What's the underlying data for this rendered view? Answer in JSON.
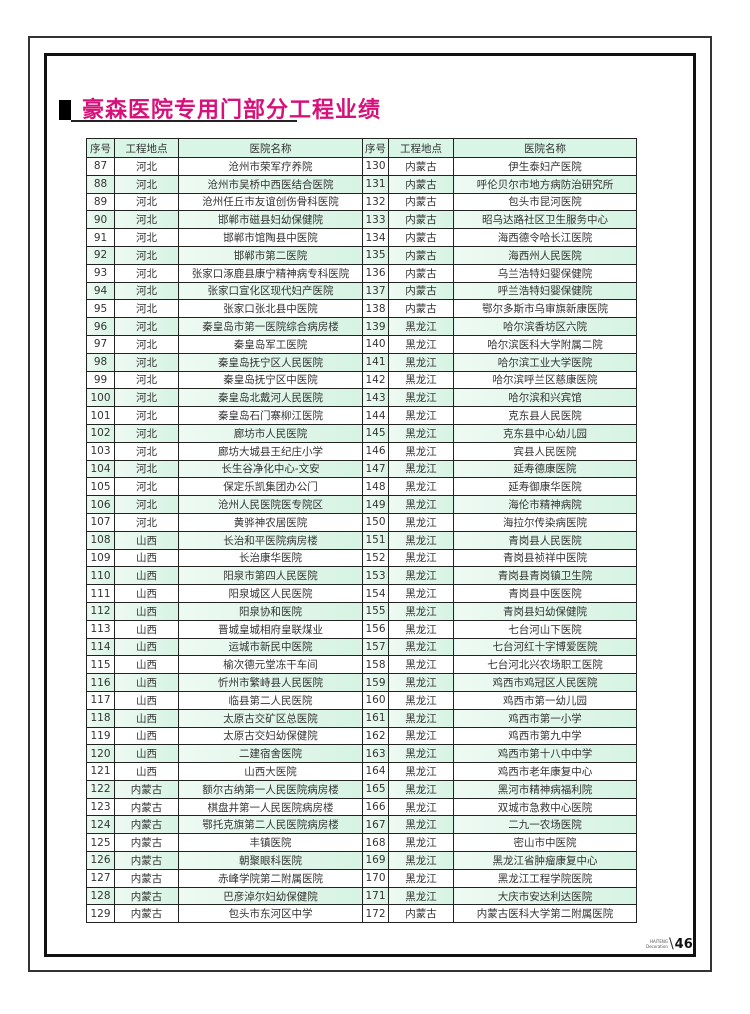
{
  "title": "豪森医院专用门部分工程业绩",
  "columns": [
    "序号",
    "工程地点",
    "医院名称",
    "序号",
    "工程地点",
    "医院名称"
  ],
  "left_rows": [
    [
      "87",
      "河北",
      "沧州市荣军疗养院"
    ],
    [
      "88",
      "河北",
      "沧州市吴桥中西医结合医院"
    ],
    [
      "89",
      "河北",
      "沧州任丘市友谊创伤骨科医院"
    ],
    [
      "90",
      "河北",
      "邯郸市磁县妇幼保健院"
    ],
    [
      "91",
      "河北",
      "邯郸市馆陶县中医院"
    ],
    [
      "92",
      "河北",
      "邯郸市第二医院"
    ],
    [
      "93",
      "河北",
      "张家口涿鹿县康宁精神病专科医院"
    ],
    [
      "94",
      "河北",
      "张家口宣化区现代妇产医院"
    ],
    [
      "95",
      "河北",
      "张家口张北县中医院"
    ],
    [
      "96",
      "河北",
      "秦皇岛市第一医院综合病房楼"
    ],
    [
      "97",
      "河北",
      "秦皇岛军工医院"
    ],
    [
      "98",
      "河北",
      "秦皇岛抚宁区人民医院"
    ],
    [
      "99",
      "河北",
      "秦皇岛抚宁区中医院"
    ],
    [
      "100",
      "河北",
      "秦皇岛北戴河人民医院"
    ],
    [
      "101",
      "河北",
      "秦皇岛石门寨柳江医院"
    ],
    [
      "102",
      "河北",
      "廊坊市人民医院"
    ],
    [
      "103",
      "河北",
      "廊坊大城县王纪庄小学"
    ],
    [
      "104",
      "河北",
      "长生谷净化中心-文安"
    ],
    [
      "105",
      "河北",
      "保定乐凯集团办公门"
    ],
    [
      "106",
      "河北",
      "沧州人民医院医专院区"
    ],
    [
      "107",
      "河北",
      "黄骅神农居医院"
    ],
    [
      "108",
      "山西",
      "长治和平医院病房楼"
    ],
    [
      "109",
      "山西",
      "长治康华医院"
    ],
    [
      "110",
      "山西",
      "阳泉市第四人民医院"
    ],
    [
      "111",
      "山西",
      "阳泉城区人民医院"
    ],
    [
      "112",
      "山西",
      "阳泉协和医院"
    ],
    [
      "113",
      "山西",
      "晋城皇城相府皇联煤业"
    ],
    [
      "114",
      "山西",
      "运城市新民中医院"
    ],
    [
      "115",
      "山西",
      "榆次德元堂冻干车间"
    ],
    [
      "116",
      "山西",
      "忻州市繁峙县人民医院"
    ],
    [
      "117",
      "山西",
      "临县第二人民医院"
    ],
    [
      "118",
      "山西",
      "太原古交矿区总医院"
    ],
    [
      "119",
      "山西",
      "太原古交妇幼保健院"
    ],
    [
      "120",
      "山西",
      "二建宿舍医院"
    ],
    [
      "121",
      "山西",
      "山西大医院"
    ],
    [
      "122",
      "内蒙古",
      "额尔古纳第一人民医院病房楼"
    ],
    [
      "123",
      "内蒙古",
      "棋盘井第一人民医院病房楼"
    ],
    [
      "124",
      "内蒙古",
      "鄂托克旗第二人民医院病房楼"
    ],
    [
      "125",
      "内蒙古",
      "丰镇医院"
    ],
    [
      "126",
      "内蒙古",
      "朝聚眼科医院"
    ],
    [
      "127",
      "内蒙古",
      "赤峰学院第二附属医院"
    ],
    [
      "128",
      "内蒙古",
      "巴彦淖尔妇幼保健院"
    ],
    [
      "129",
      "内蒙古",
      "包头市东河区中学"
    ]
  ],
  "right_rows": [
    [
      "130",
      "内蒙古",
      "伊生泰妇产医院"
    ],
    [
      "131",
      "内蒙古",
      "呼伦贝尔市地方病防治研究所"
    ],
    [
      "132",
      "内蒙古",
      "包头市昆河医院"
    ],
    [
      "133",
      "内蒙古",
      "昭乌达路社区卫生服务中心"
    ],
    [
      "134",
      "内蒙古",
      "海西德令哈长江医院"
    ],
    [
      "135",
      "内蒙古",
      "海西州人民医院"
    ],
    [
      "136",
      "内蒙古",
      "乌兰浩特妇婴保健院"
    ],
    [
      "137",
      "内蒙古",
      "呼兰浩特妇婴保健院"
    ],
    [
      "138",
      "内蒙古",
      "鄂尔多斯市乌审旗新康医院"
    ],
    [
      "139",
      "黑龙江",
      "哈尔滨香坊区六院"
    ],
    [
      "140",
      "黑龙江",
      "哈尔滨医科大学附属二院"
    ],
    [
      "141",
      "黑龙江",
      "哈尔滨工业大学医院"
    ],
    [
      "142",
      "黑龙江",
      "哈尔滨呼兰区慈康医院"
    ],
    [
      "143",
      "黑龙江",
      "哈尔滨和兴宾馆"
    ],
    [
      "144",
      "黑龙江",
      "克东县人民医院"
    ],
    [
      "145",
      "黑龙江",
      "克东县中心幼儿园"
    ],
    [
      "146",
      "黑龙江",
      "宾县人民医院"
    ],
    [
      "147",
      "黑龙江",
      "延寿德康医院"
    ],
    [
      "148",
      "黑龙江",
      "延寿御康华医院"
    ],
    [
      "149",
      "黑龙江",
      "海伦市精神病院"
    ],
    [
      "150",
      "黑龙江",
      "海拉尔传染病医院"
    ],
    [
      "151",
      "黑龙江",
      "青岗县人民医院"
    ],
    [
      "152",
      "黑龙江",
      "青岗县祯祥中医院"
    ],
    [
      "153",
      "黑龙江",
      "青岗县青岗镇卫生院"
    ],
    [
      "154",
      "黑龙江",
      "青岗县中医医院"
    ],
    [
      "155",
      "黑龙江",
      "青岗县妇幼保健院"
    ],
    [
      "156",
      "黑龙江",
      "七台河山下医院"
    ],
    [
      "157",
      "黑龙江",
      "七台河红十字博爱医院"
    ],
    [
      "158",
      "黑龙江",
      "七台河北兴农场职工医院"
    ],
    [
      "159",
      "黑龙江",
      "鸡西市鸡冠区人民医院"
    ],
    [
      "160",
      "黑龙江",
      "鸡西市第一幼儿园"
    ],
    [
      "161",
      "黑龙江",
      "鸡西市第一小学"
    ],
    [
      "162",
      "黑龙江",
      "鸡西市第九中学"
    ],
    [
      "163",
      "黑龙江",
      "鸡西市第十八中中学"
    ],
    [
      "164",
      "黑龙江",
      "鸡西市老年康复中心"
    ],
    [
      "165",
      "黑龙江",
      "黑河市精神病福利院"
    ],
    [
      "166",
      "黑龙江",
      "双城市急救中心医院"
    ],
    [
      "167",
      "黑龙江",
      "二九一农场医院"
    ],
    [
      "168",
      "黑龙江",
      "密山市中医院"
    ],
    [
      "169",
      "黑龙江",
      "黑龙江省肿瘤康复中心"
    ],
    [
      "170",
      "黑龙江",
      "黑龙江工程学院医院"
    ],
    [
      "171",
      "黑龙江",
      "大庆市安达利达医院"
    ],
    [
      "172",
      "内蒙古",
      "内蒙古医科大学第二附属医院"
    ]
  ],
  "footer": {
    "brand_line1": "HAITENG",
    "brand_line2": "Decoration",
    "page_number": "46"
  },
  "colors": {
    "title": "#d6127a",
    "header_bg": "#d8f5e6",
    "alt_row_bg": "#d6f3e3"
  }
}
